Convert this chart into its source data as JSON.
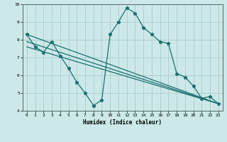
{
  "title": "",
  "xlabel": "Humidex (Indice chaleur)",
  "ylabel": "",
  "xlim": [
    -0.5,
    23.5
  ],
  "ylim": [
    4,
    10
  ],
  "xticks": [
    0,
    1,
    2,
    3,
    4,
    5,
    6,
    7,
    8,
    9,
    10,
    11,
    12,
    13,
    14,
    15,
    16,
    17,
    18,
    19,
    20,
    21,
    22,
    23
  ],
  "yticks": [
    4,
    5,
    6,
    7,
    8,
    9,
    10
  ],
  "bg_color": "#cce8e8",
  "grid_color": "#b0d0d0",
  "line_color": "#1a7070",
  "line1_x": [
    0,
    1,
    2,
    3,
    4,
    5,
    6,
    7,
    8,
    9,
    10,
    11,
    12,
    13,
    14,
    15,
    16,
    17,
    18,
    19,
    20,
    21,
    22,
    23
  ],
  "line1_y": [
    8.3,
    7.6,
    7.3,
    7.9,
    7.1,
    6.4,
    5.6,
    5.0,
    4.3,
    4.6,
    8.3,
    9.0,
    9.8,
    9.5,
    8.7,
    8.3,
    7.9,
    7.8,
    6.1,
    5.9,
    5.4,
    4.7,
    4.8,
    4.4
  ],
  "line2_x": [
    0,
    23
  ],
  "line2_y": [
    8.3,
    4.4
  ],
  "line3_x": [
    0,
    23
  ],
  "line3_y": [
    8.3,
    4.4
  ],
  "line4_x": [
    0,
    23
  ],
  "line4_y": [
    7.6,
    4.4
  ],
  "line5_x": [
    0,
    23
  ],
  "line5_y": [
    8.3,
    4.4
  ]
}
